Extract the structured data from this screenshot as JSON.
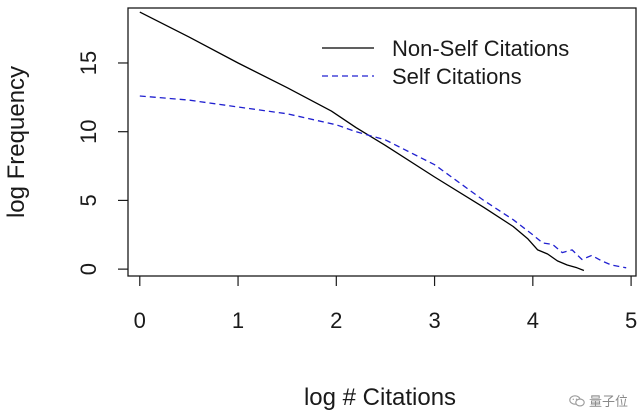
{
  "chart_data": {
    "type": "line",
    "title": "",
    "xlabel": "log # Citations",
    "ylabel": "log Frequency",
    "xlim": [
      -0.12,
      5.05
    ],
    "ylim": [
      -0.5,
      19.0
    ],
    "x_ticks": [
      0,
      1,
      2,
      3,
      4,
      5
    ],
    "y_ticks": [
      0,
      5,
      10,
      15
    ],
    "grid": false,
    "legend_position": "top-right",
    "series": [
      {
        "name": "Non-Self Citations",
        "color": "#000000",
        "style": "solid",
        "x": [
          0,
          0.5,
          1.0,
          1.5,
          1.95,
          2.2,
          2.5,
          3.0,
          3.5,
          3.8,
          3.95,
          4.05,
          4.15,
          4.25,
          4.35,
          4.45,
          4.52
        ],
        "y": [
          18.7,
          16.9,
          15.0,
          13.2,
          11.5,
          10.3,
          9.0,
          6.7,
          4.5,
          3.1,
          2.2,
          1.4,
          1.1,
          0.6,
          0.3,
          0.1,
          -0.1
        ]
      },
      {
        "name": "Self Citations",
        "color": "#2020d0",
        "style": "dashed",
        "x": [
          0,
          0.5,
          1.0,
          1.5,
          2.0,
          2.2,
          2.5,
          3.0,
          3.5,
          3.8,
          4.0,
          4.1,
          4.2,
          4.3,
          4.4,
          4.5,
          4.6,
          4.7,
          4.8,
          4.95
        ],
        "y": [
          12.6,
          12.3,
          11.8,
          11.3,
          10.5,
          10.0,
          9.4,
          7.6,
          5.0,
          3.6,
          2.5,
          1.9,
          1.8,
          1.2,
          1.4,
          0.7,
          1.0,
          0.6,
          0.3,
          0.1
        ]
      }
    ]
  },
  "watermark": {
    "text": "量子位",
    "icon": "wechat-icon"
  }
}
